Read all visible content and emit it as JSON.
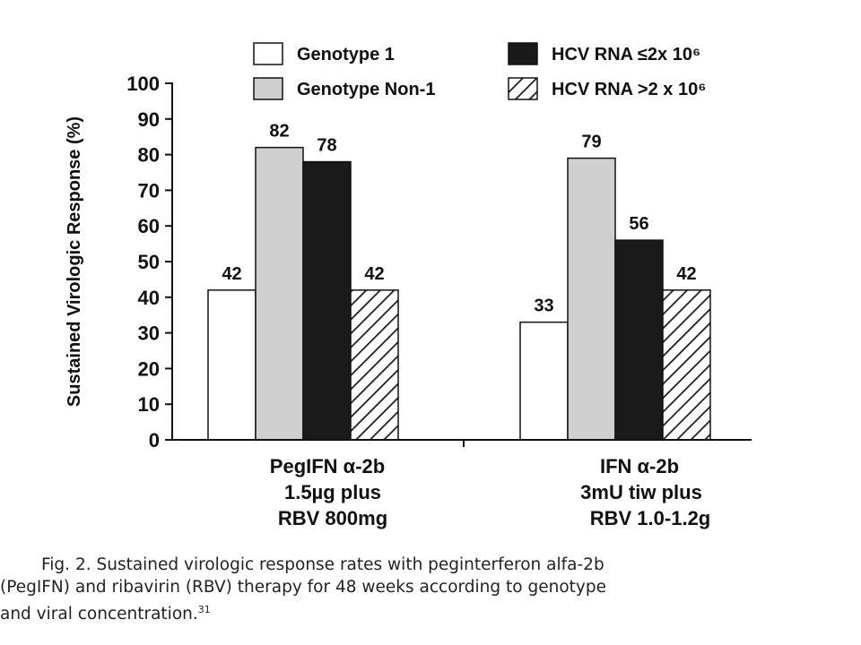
{
  "chart_data": {
    "type": "bar",
    "ylabel": "Sustained Virologic Response (%)",
    "ylim": [
      0,
      100
    ],
    "yticks": [
      0,
      10,
      20,
      30,
      40,
      50,
      60,
      70,
      80,
      90,
      100
    ],
    "categories": [
      [
        "PegIFN α-2b",
        "1.5µg plus",
        "RBV 800mg"
      ],
      [
        "IFN α-2b",
        "3mU tiw plus",
        "RBV 1.0-1.2g"
      ]
    ],
    "series": [
      {
        "name": "Genotype 1",
        "fill": "white",
        "values": [
          42,
          33
        ]
      },
      {
        "name": "Genotype Non-1",
        "fill": "lightgray",
        "values": [
          82,
          79
        ]
      },
      {
        "name": "HCV RNA ≤2x 10⁶",
        "fill": "black",
        "values": [
          78,
          56
        ]
      },
      {
        "name": "HCV RNA >2 x 10⁶",
        "fill": "hatched",
        "values": [
          42,
          42
        ]
      }
    ],
    "legend_position": "top",
    "colors": {
      "white": "#ffffff",
      "lightgray": "#cfcfcf",
      "black": "#1a1a1a",
      "hatch": "#1a1a1a",
      "border": "#111111"
    }
  },
  "caption": {
    "line1": "Fig. 2.  Sustained virologic response rates with peginterferon alfa-2b",
    "line2": "(PegIFN) and ribavirin (RBV) therapy for 48 weeks according to genotype",
    "line3": "and viral concentration.",
    "ref": "31"
  }
}
